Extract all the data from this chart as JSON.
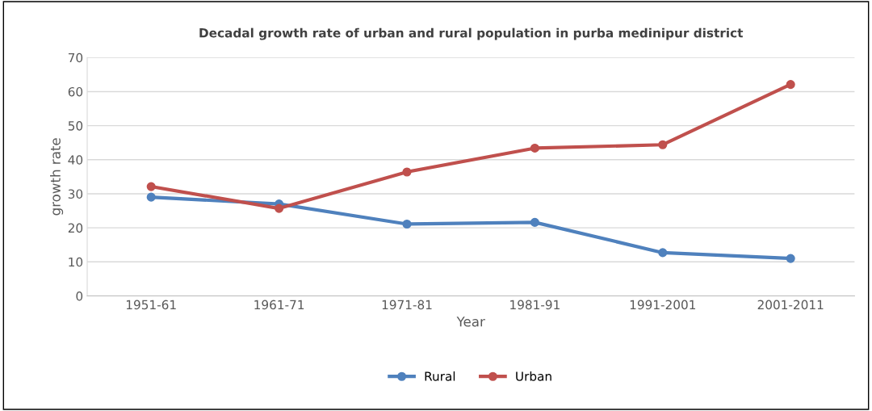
{
  "chart_data": {
    "type": "line",
    "title": "Decadal growth rate of urban and rural population in purba medinipur district",
    "xlabel": "Year",
    "ylabel": "growth rate",
    "categories": [
      "1951-61",
      "1961-71",
      "1971-81",
      "1981-91",
      "1991-2001",
      "2001-2011"
    ],
    "series": [
      {
        "name": "Rural",
        "color": "#4f81bd",
        "values": [
          29.0,
          27.0,
          21.1,
          21.6,
          12.7,
          11.0
        ]
      },
      {
        "name": "Urban",
        "color": "#c0504d",
        "values": [
          32.1,
          25.7,
          36.4,
          43.4,
          44.4,
          62.1
        ]
      }
    ],
    "ylim": [
      0,
      70
    ],
    "yticks": [
      0,
      10,
      20,
      30,
      40,
      50,
      60,
      70
    ],
    "grid": "y",
    "legend": "bottom",
    "marker": "circle",
    "line_style": "solid"
  }
}
